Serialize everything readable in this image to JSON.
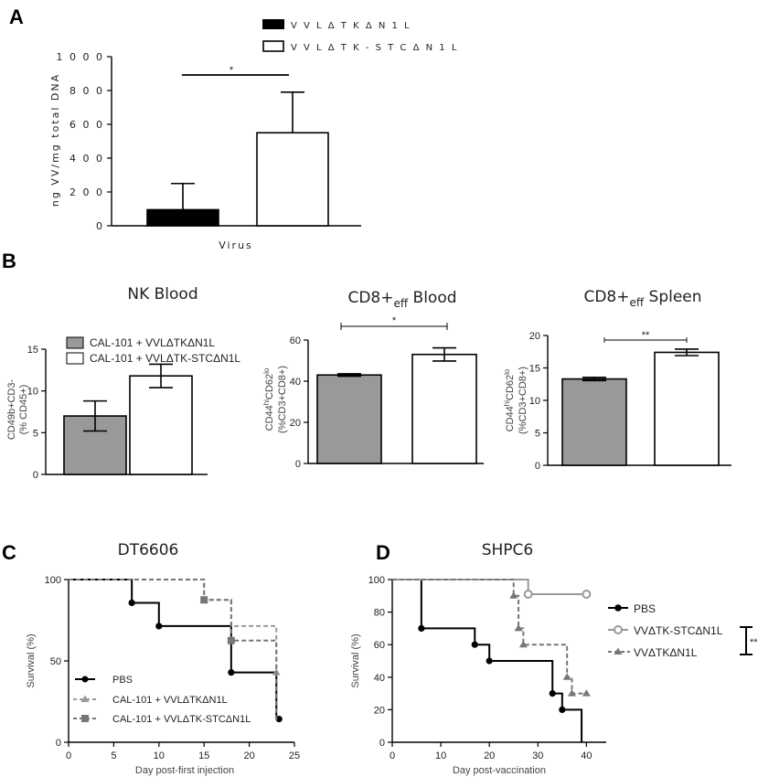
{
  "panel_letters": {
    "a": "A",
    "b": "B",
    "c": "C",
    "d": "D"
  },
  "chart_data": [
    {
      "id": "A",
      "type": "bar",
      "title": "",
      "xlabel": "Virus",
      "ylabel": "ng VV/mg total DNA",
      "ylim": [
        0,
        1000
      ],
      "yticks": [
        0,
        200,
        400,
        600,
        800,
        1000
      ],
      "ytick_labels": [
        "0",
        "2 0 0",
        "4 0 0",
        "6 0 0",
        "8 0 0",
        "1 0 0 0"
      ],
      "legend": [
        "VVLΔTKΔN1L",
        "VVLΔTK-STCΔN1L"
      ],
      "legend_display": [
        "V V L Δ T K Δ N 1 L",
        "V V L Δ T K - S T C Δ N 1 L"
      ],
      "series": [
        {
          "name": "VVLΔTKΔN1L",
          "value": 95,
          "error": 155,
          "color": "#000000"
        },
        {
          "name": "VVLΔTK-STCΔN1L",
          "value": 550,
          "error": 240,
          "color": "#ffffff"
        }
      ],
      "significance": "*",
      "legend_position": "top-right"
    },
    {
      "id": "B1",
      "type": "bar",
      "title": "NK Blood",
      "ylabel_line1": "CD49b+CD3-",
      "ylabel_line2": "(% CD45+)",
      "ylim": [
        0,
        15
      ],
      "yticks": [
        0,
        5,
        10,
        15
      ],
      "legend": [
        "CAL-101 + VVLΔTKΔN1L",
        "CAL-101 + VVLΔTK-STCΔN1L"
      ],
      "series": [
        {
          "name": "CAL-101 + VVLΔTKΔN1L",
          "value": 7.0,
          "error": 1.8,
          "color": "#999999"
        },
        {
          "name": "CAL-101 + VVLΔTK-STCΔN1L",
          "value": 11.8,
          "error": 1.4,
          "color": "#ffffff"
        }
      ],
      "legend_position": "top-left"
    },
    {
      "id": "B2",
      "type": "bar",
      "title_main": "CD8+",
      "title_sub": "eff",
      "title_tail": " Blood",
      "ylabel_line1_pre": "CD44",
      "ylabel_line1_sup1": "hi",
      "ylabel_line1_mid": "CD62",
      "ylabel_line1_sup2": "lo",
      "ylabel_line2": "(%CD3+CD8+)",
      "ylim": [
        0,
        60
      ],
      "yticks": [
        0,
        20,
        40,
        60
      ],
      "series": [
        {
          "name": "CAL-101 + VVLΔTKΔN1L",
          "value": 43,
          "error": 0.6,
          "color": "#999999"
        },
        {
          "name": "CAL-101 + VVLΔTK-STCΔN1L",
          "value": 53,
          "error": 3.2,
          "color": "#ffffff"
        }
      ],
      "significance": "*"
    },
    {
      "id": "B3",
      "type": "bar",
      "title_main": "CD8+",
      "title_sub": "eff",
      "title_tail": " Spleen",
      "ylabel_line1_pre": "CD44",
      "ylabel_line1_sup1": "hi",
      "ylabel_line1_mid": "CD62",
      "ylabel_line1_sup2": "lo",
      "ylabel_line2": "(%CD3+CD8+)",
      "ylim": [
        0,
        20
      ],
      "yticks": [
        0,
        5,
        10,
        15,
        20
      ],
      "series": [
        {
          "name": "CAL-101 + VVLΔTKΔN1L",
          "value": 13.3,
          "error": 0.25,
          "color": "#999999"
        },
        {
          "name": "CAL-101 + VVLΔTK-STCΔN1L",
          "value": 17.4,
          "error": 0.5,
          "color": "#ffffff"
        }
      ],
      "significance": "**"
    },
    {
      "id": "C",
      "type": "line",
      "title": "DT6606",
      "xlabel": "Day post-first injection",
      "ylabel": "Survival (%)",
      "xlim": [
        0,
        25
      ],
      "ylim": [
        0,
        100
      ],
      "xticks": [
        0,
        5,
        10,
        15,
        20,
        25
      ],
      "yticks": [
        0,
        50,
        100
      ],
      "legend_position": "bottom-left",
      "series": [
        {
          "name": "PBS",
          "style": "solid",
          "color": "#000000",
          "marker": "circle",
          "steps": [
            [
              0,
              100
            ],
            [
              7,
              100
            ],
            [
              7,
              85.7
            ],
            [
              10,
              85.7
            ],
            [
              10,
              71.4
            ],
            [
              18,
              71.4
            ],
            [
              18,
              42.9
            ],
            [
              23,
              42.9
            ],
            [
              23,
              14.3
            ]
          ],
          "points": [
            [
              7,
              85.7
            ],
            [
              10,
              71.4
            ],
            [
              18,
              42.9
            ],
            [
              23.3,
              14.3
            ]
          ]
        },
        {
          "name": "CAL-101 + VVLΔTKΔN1L",
          "style": "dashed",
          "color": "#999999",
          "marker": "triangle",
          "steps": [
            [
              0,
              100
            ],
            [
              15,
              100
            ],
            [
              15,
              87.5
            ],
            [
              18,
              87.5
            ],
            [
              18,
              71.4
            ],
            [
              23,
              71.4
            ],
            [
              23,
              42.9
            ]
          ],
          "points": [
            [
              15,
              87.5
            ],
            [
              23,
              42.9
            ]
          ]
        },
        {
          "name": "CAL-101 + VVLΔTK-STCΔN1L",
          "style": "dashed",
          "color": "#777777",
          "marker": "square",
          "steps": [
            [
              0,
              100
            ],
            [
              15,
              100
            ],
            [
              15,
              87.5
            ],
            [
              18,
              87.5
            ],
            [
              18,
              62.5
            ],
            [
              23,
              62.5
            ],
            [
              23,
              12.5
            ]
          ],
          "points": [
            [
              15,
              87.5
            ],
            [
              18,
              62.5
            ]
          ]
        }
      ]
    },
    {
      "id": "D",
      "type": "line",
      "title": "SHPC6",
      "xlabel": "Day post-vaccination",
      "ylabel": "Survival (%)",
      "xlim": [
        0,
        42
      ],
      "ylim": [
        0,
        100
      ],
      "xticks": [
        0,
        10,
        20,
        30,
        40
      ],
      "yticks": [
        0,
        20,
        40,
        60,
        80,
        100
      ],
      "legend_position": "right",
      "significance": "**",
      "series": [
        {
          "name": "PBS",
          "style": "solid",
          "color": "#000000",
          "marker": "circle",
          "steps": [
            [
              0,
              100
            ],
            [
              6,
              100
            ],
            [
              6,
              70
            ],
            [
              17,
              70
            ],
            [
              17,
              60
            ],
            [
              20,
              60
            ],
            [
              20,
              50
            ],
            [
              33,
              50
            ],
            [
              33,
              30
            ],
            [
              35,
              30
            ],
            [
              35,
              20
            ],
            [
              39,
              20
            ],
            [
              39,
              0
            ]
          ],
          "points": [
            [
              6,
              70
            ],
            [
              17,
              60
            ],
            [
              20,
              50
            ],
            [
              33,
              30
            ],
            [
              35,
              20
            ]
          ]
        },
        {
          "name": "VVΔTK-STCΔN1L",
          "style": "solid",
          "color": "#999999",
          "marker": "open-circle",
          "steps": [
            [
              0,
              100
            ],
            [
              28,
              100
            ],
            [
              28,
              91
            ],
            [
              40,
              91
            ]
          ],
          "points": [
            [
              28,
              91
            ],
            [
              40,
              91
            ]
          ]
        },
        {
          "name": "VVΔTKΔN1L",
          "style": "dashed",
          "color": "#777777",
          "marker": "triangle",
          "steps": [
            [
              0,
              100
            ],
            [
              25,
              100
            ],
            [
              25,
              90
            ],
            [
              26,
              90
            ],
            [
              26,
              70
            ],
            [
              27,
              70
            ],
            [
              27,
              60
            ],
            [
              36,
              60
            ],
            [
              36,
              40
            ],
            [
              37,
              40
            ],
            [
              37,
              30
            ],
            [
              40,
              30
            ]
          ],
          "points": [
            [
              25,
              90
            ],
            [
              26,
              70
            ],
            [
              27,
              60
            ],
            [
              36,
              40
            ],
            [
              37,
              30
            ],
            [
              40,
              30
            ]
          ]
        }
      ]
    }
  ]
}
